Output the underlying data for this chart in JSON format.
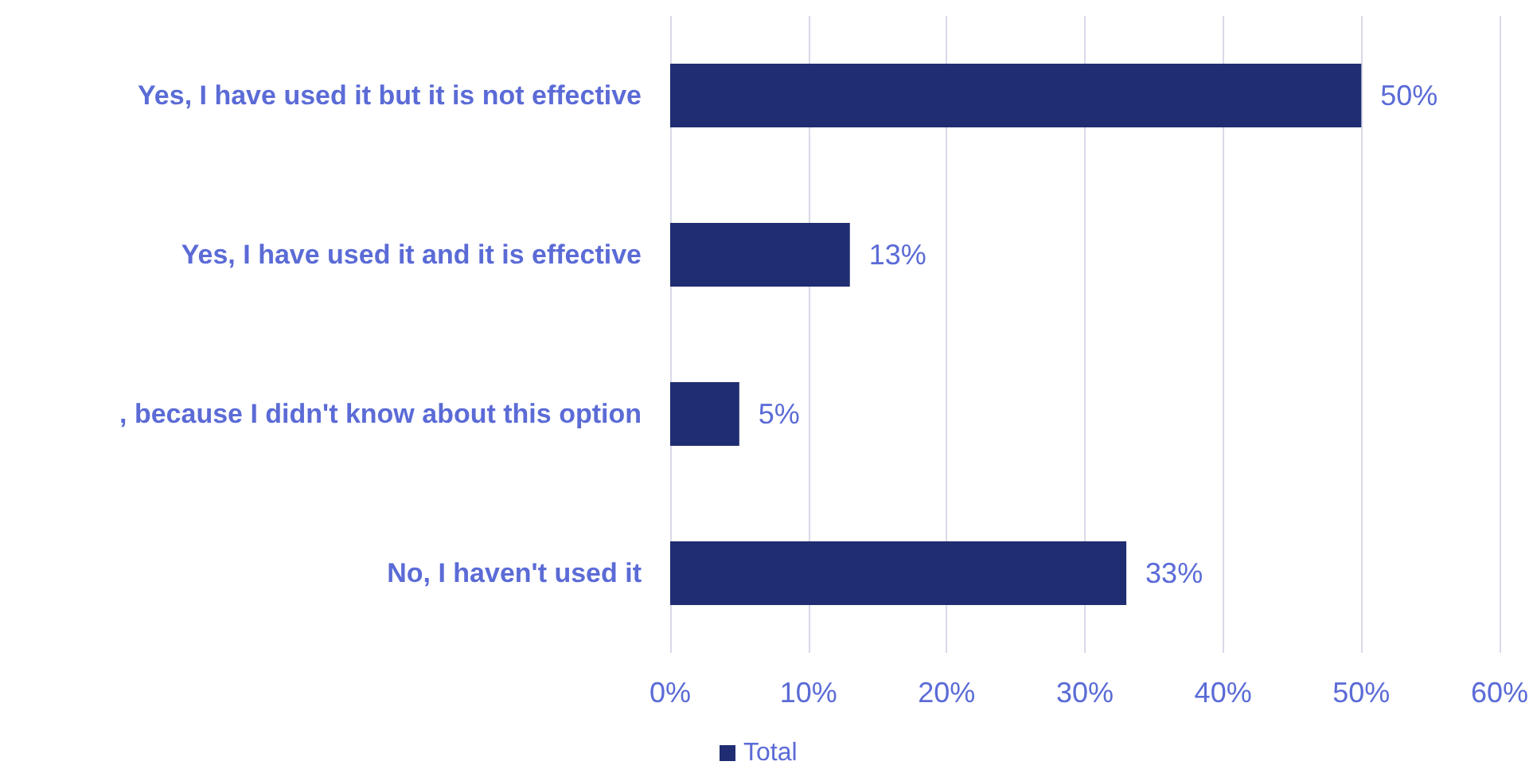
{
  "chart_data": {
    "type": "bar",
    "orientation": "horizontal",
    "categories": [
      "Yes, I have used it but it is not effective",
      "Yes, I have used it and it is effective",
      ", because I didn't know about this option",
      "No, I haven't used it"
    ],
    "series": [
      {
        "name": "Total",
        "color": "#202d72",
        "values": [
          50,
          13,
          5,
          33
        ],
        "value_labels": [
          "50%",
          "13%",
          "5%",
          "33%"
        ]
      }
    ],
    "xlim": [
      0,
      60
    ],
    "xticks": [
      {
        "value": 0,
        "label": "0%"
      },
      {
        "value": 10,
        "label": "10%"
      },
      {
        "value": 20,
        "label": "20%"
      },
      {
        "value": 30,
        "label": "30%"
      },
      {
        "value": 40,
        "label": "40%"
      },
      {
        "value": 50,
        "label": "50%"
      },
      {
        "value": 60,
        "label": "60%"
      }
    ],
    "grid": "x",
    "legend": "bottom"
  }
}
